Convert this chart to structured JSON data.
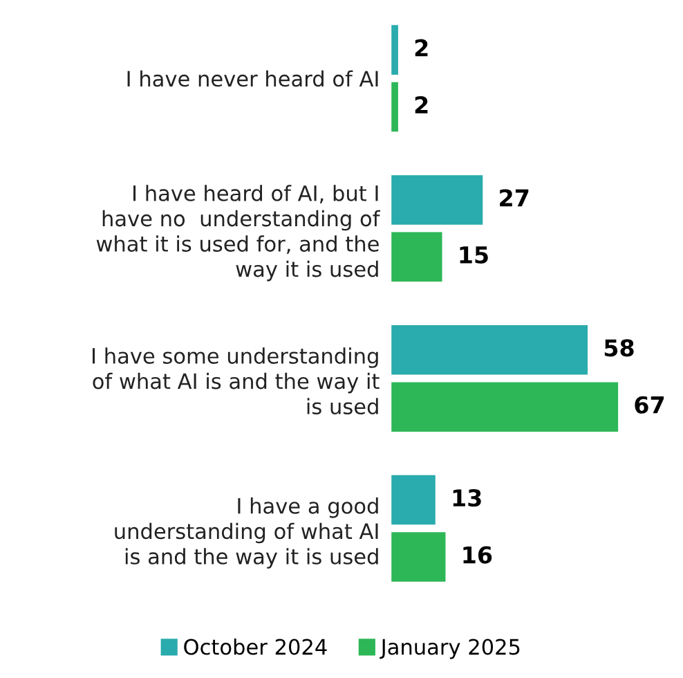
{
  "chart_data": {
    "type": "bar",
    "orientation": "horizontal",
    "categories": [
      "I have never heard of AI",
      "I have heard of AI, but I\nhave no  understanding of\nwhat it is used for, and the\nway it is used",
      "I have some understanding\nof what AI is and the way it\nis used",
      "I have a good\nunderstanding of what AI\nis and the way it is used"
    ],
    "series": [
      {
        "name": "October 2024",
        "color": "#2aabad",
        "values": [
          2,
          27,
          58,
          13
        ]
      },
      {
        "name": "January 2025",
        "color": "#2db757",
        "values": [
          2,
          15,
          67,
          16
        ]
      }
    ],
    "data_labels": true,
    "legend": "bottom",
    "grid": false
  }
}
